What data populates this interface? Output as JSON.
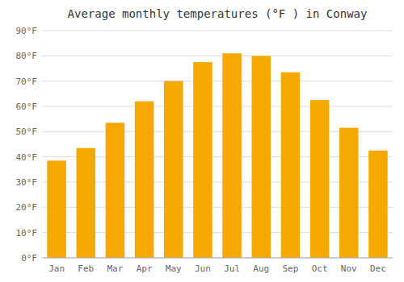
{
  "chart_data": {
    "type": "bar",
    "title": "Average monthly temperatures (°F ) in Conway",
    "categories": [
      "Jan",
      "Feb",
      "Mar",
      "Apr",
      "May",
      "Jun",
      "Jul",
      "Aug",
      "Sep",
      "Oct",
      "Nov",
      "Dec"
    ],
    "values": [
      38.5,
      43.5,
      53.5,
      62.0,
      70.0,
      77.5,
      81.0,
      80.0,
      73.5,
      62.5,
      51.5,
      42.5
    ],
    "color": "#F5A800",
    "ylim": [
      0,
      90
    ],
    "yticks": [
      {
        "value": 0,
        "label": "0°F"
      },
      {
        "value": 10,
        "label": "10°F"
      },
      {
        "value": 20,
        "label": "20°F"
      },
      {
        "value": 30,
        "label": "30°F"
      },
      {
        "value": 40,
        "label": "40°F"
      },
      {
        "value": 50,
        "label": "50°F"
      },
      {
        "value": 60,
        "label": "60°F"
      },
      {
        "value": 70,
        "label": "70°F"
      },
      {
        "value": 80,
        "label": "80°F"
      },
      {
        "value": 90,
        "label": "90°F"
      }
    ],
    "grid": true
  }
}
